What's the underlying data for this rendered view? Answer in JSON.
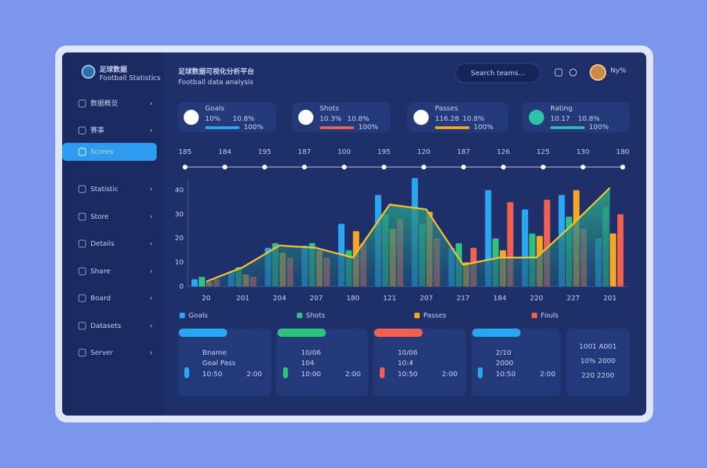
{
  "sidebar": {
    "logo_title": "足球数据",
    "logo_subtitle": "Football Statistics",
    "active": 2,
    "menu": [
      "数据概览",
      "赛事",
      "Scores",
      "Statistic",
      "Store",
      "Details",
      "Share",
      "Board",
      "Datasets",
      "Server"
    ]
  },
  "header": {
    "title": "足球数据可视化分析平台",
    "subtitle": "Football data analysis",
    "search": "Search teams...",
    "user": "Ny%"
  },
  "stat_cards": [
    {
      "label": "Goals",
      "value": "10%",
      "change": "10.8%",
      "sub": "100%",
      "color": "#2aa7f0"
    },
    {
      "label": "Shots",
      "value": "10.3%",
      "change": "10.8%",
      "sub": "100%",
      "color": "#f0614f"
    },
    {
      "label": "Passes",
      "value": "116.28",
      "change": "10.8%",
      "sub": "100%",
      "color": "#f5a623"
    },
    {
      "label": "Rating",
      "value": "10.17",
      "change": "10.8%",
      "sub": "100%",
      "color": "#2ec2a8"
    }
  ],
  "chart": {
    "top_values": [
      185,
      184,
      195,
      187,
      100,
      195,
      120,
      187,
      126,
      125,
      130,
      180
    ],
    "categories": [
      "20",
      "201",
      "204",
      "207",
      "180",
      "121",
      "207",
      "217",
      "184",
      "220",
      "227",
      "201"
    ],
    "ylim": [
      0,
      45
    ],
    "yticks": [
      0,
      10,
      20,
      30,
      40
    ],
    "series": [
      {
        "name": "Goals",
        "color": "#2aa7f0",
        "values": [
          3,
          6,
          16,
          17,
          26,
          38,
          45,
          16,
          40,
          32,
          38,
          20
        ]
      },
      {
        "name": "Shots",
        "color": "#2ec27e",
        "values": [
          4,
          8,
          18,
          18,
          15,
          30,
          26,
          18,
          20,
          22,
          29,
          33
        ]
      },
      {
        "name": "Passes",
        "color": "#f5a623",
        "values": [
          2,
          5,
          14,
          15,
          23,
          24,
          31,
          10,
          15,
          21,
          40,
          22
        ]
      },
      {
        "name": "Fouls",
        "color": "#f0614f",
        "values": [
          3,
          4,
          12,
          12,
          18,
          28,
          20,
          16,
          35,
          36,
          24,
          30
        ]
      }
    ],
    "trend": {
      "color": "#f2c230",
      "values": [
        2,
        8,
        17,
        16,
        12,
        34,
        32,
        9,
        12,
        12,
        26,
        41
      ]
    }
  },
  "bottom_cards": [
    {
      "title": "Bname",
      "value": "Goal Pass",
      "foot": "10:50",
      "foot2": "2:00",
      "color": "#2aa7f0"
    },
    {
      "title": "10/06",
      "value": "104",
      "foot": "10:00",
      "foot2": "2:00",
      "color": "#2ec27e"
    },
    {
      "title": "10/06",
      "value": "10:4",
      "foot": "10:50",
      "foot2": "2:00",
      "color": "#f0614f"
    },
    {
      "title": "2/10",
      "value": "2000",
      "foot": "10:50",
      "foot2": "2:00",
      "color": "#2aa7f0"
    }
  ],
  "summary": [
    {
      "text": "1001 A001",
      "color": "#2ec27e"
    },
    {
      "text": "10% 2000",
      "color": "#2ec2c8"
    },
    {
      "text": "220 2200",
      "color": "#f5a623"
    }
  ]
}
